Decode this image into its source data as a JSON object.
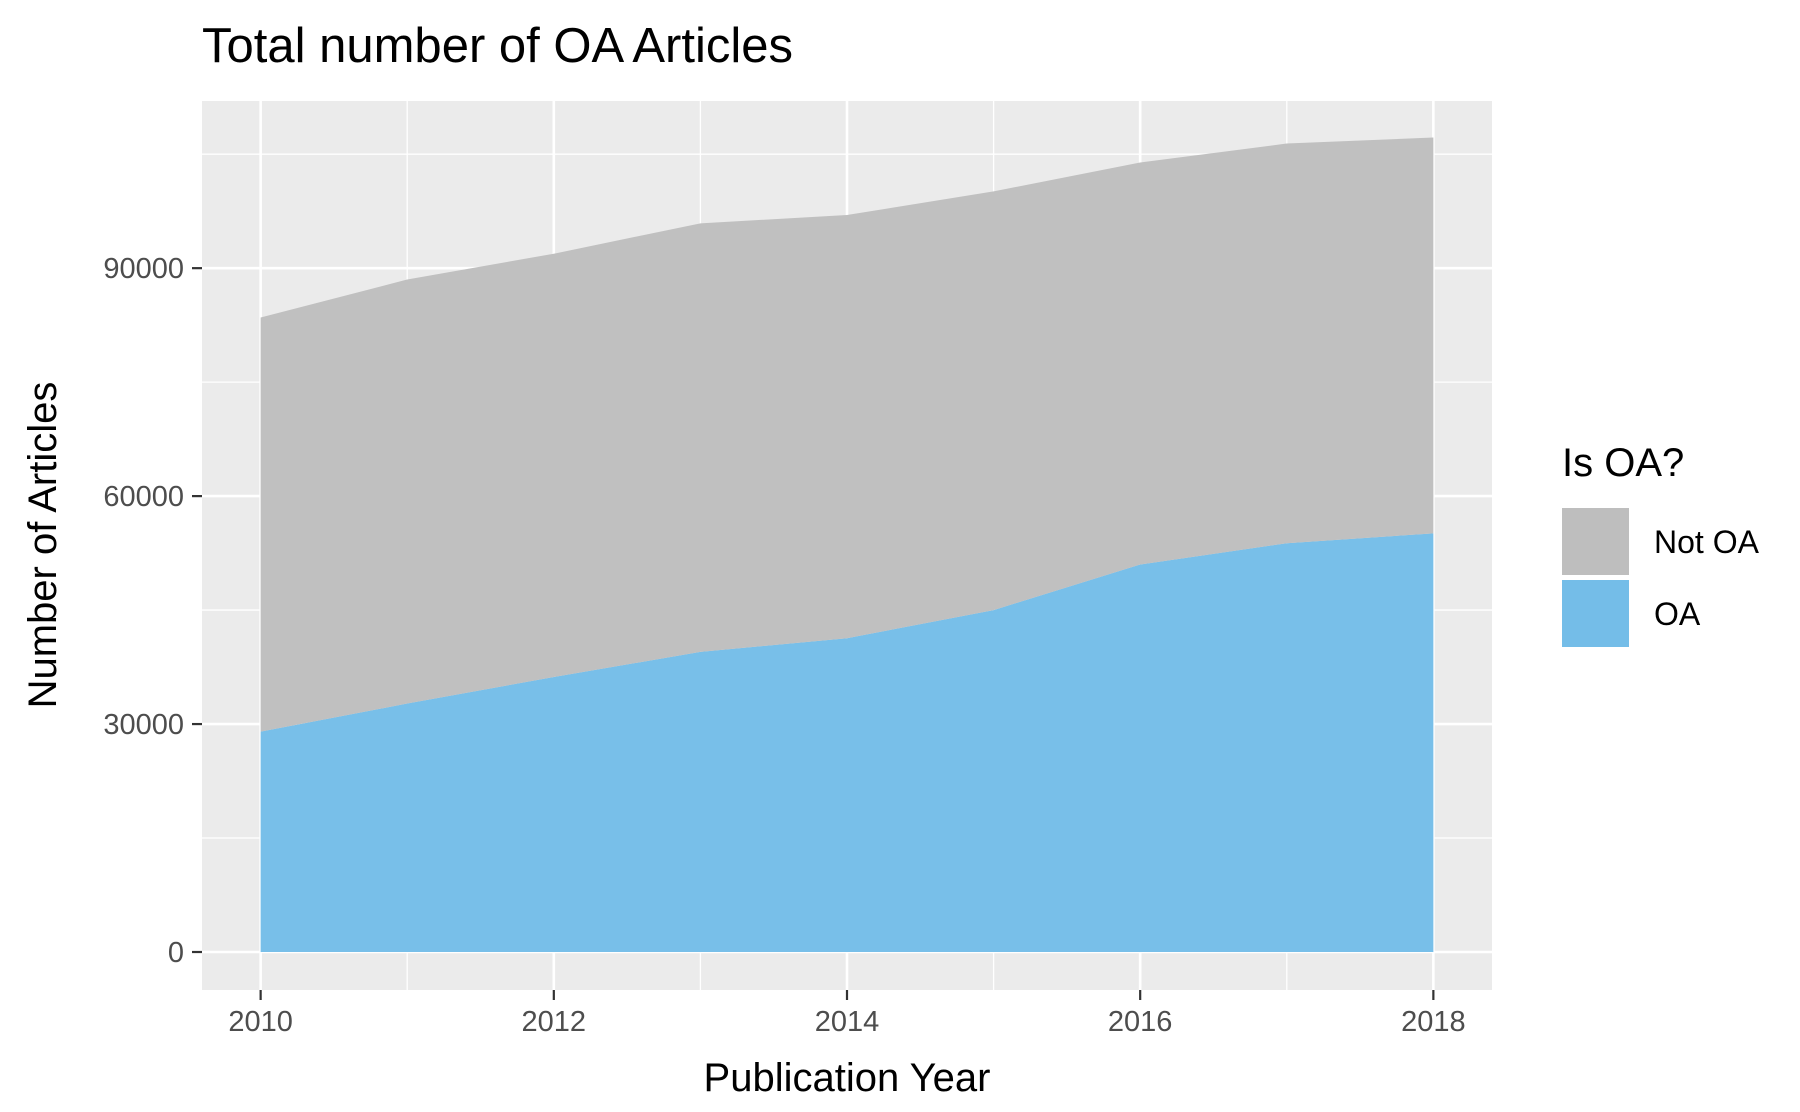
{
  "chart_data": {
    "type": "area",
    "stacked": true,
    "title": "Total number of OA Articles",
    "xlabel": "Publication Year",
    "ylabel": "Number of Articles",
    "x": [
      2010,
      2011,
      2012,
      2013,
      2014,
      2015,
      2016,
      2017,
      2018
    ],
    "x_ticks": [
      "2010",
      "2012",
      "2014",
      "2016",
      "2018"
    ],
    "y_ticks": [
      "0",
      "30000",
      "60000",
      "90000"
    ],
    "xlim": [
      2009.6,
      2018.4
    ],
    "ylim": [
      -5000,
      112000
    ],
    "grid": true,
    "legend": {
      "title": "Is OA?",
      "placement": "right"
    },
    "series": [
      {
        "name": "OA",
        "color": "#74bde8",
        "values": [
          29000,
          32700,
          36200,
          39500,
          41300,
          45000,
          51000,
          53800,
          55100
        ]
      },
      {
        "name": "Not OA",
        "color": "#bebebe",
        "values": [
          54500,
          55800,
          55700,
          56400,
          55700,
          55100,
          52900,
          52600,
          52100
        ]
      }
    ]
  }
}
